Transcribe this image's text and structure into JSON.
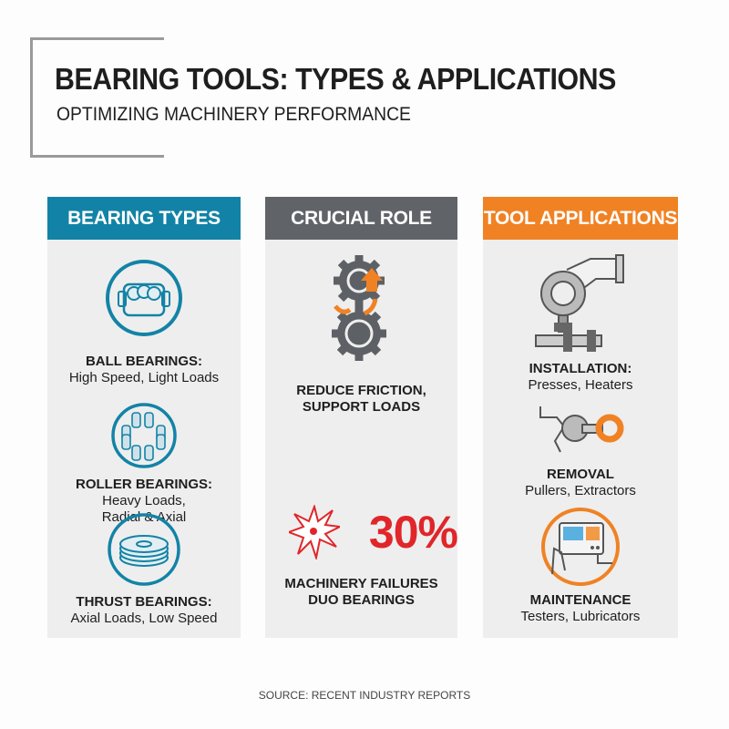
{
  "header": {
    "title": "BEARING TOOLS: TYPES & APPLICATIONS",
    "subtitle": "OPTIMIZING MACHINERY PERFORMANCE"
  },
  "colors": {
    "teal": "#1283a6",
    "gray": "#606468",
    "orange": "#f08224",
    "red": "#e0262a"
  },
  "columns": [
    {
      "title": "BEARING TYPES",
      "items": [
        {
          "icon": "ball-bearing-icon",
          "label": "BALL BEARINGS:",
          "desc": [
            "High Speed, Light Loads"
          ]
        },
        {
          "icon": "roller-bearing-icon",
          "label": "ROLLER BEARINGS:",
          "desc": [
            "Heavy Loads,",
            "Radial & Axial"
          ]
        },
        {
          "icon": "thrust-bearing-icon",
          "label": "THRUST BEARINGS:",
          "desc": [
            "Axial Loads, Low Speed"
          ]
        }
      ]
    },
    {
      "title": "CRUCIAL ROLE",
      "items": [
        {
          "icon": "gears-icon",
          "label": [
            "REDUCE FRICTION,",
            "SUPPORT LOADS"
          ]
        },
        {
          "icon": "burst-icon",
          "stat": "30%",
          "label": [
            "MACHINERY FAILURES",
            "DUO BEARINGS"
          ]
        }
      ]
    },
    {
      "title": "TOOL APPLICATIONS",
      "items": [
        {
          "icon": "press-icon",
          "label": "INSTALLATION:",
          "desc": [
            "Presses, Heaters"
          ]
        },
        {
          "icon": "puller-icon",
          "label": "REMOVAL",
          "desc": [
            "Pullers, Extractors"
          ]
        },
        {
          "icon": "tester-icon",
          "label": "MAINTENANCE",
          "desc": [
            "Testers, Lubricators"
          ]
        }
      ]
    }
  ],
  "source": "SOURCE: RECENT INDUSTRY REPORTS"
}
